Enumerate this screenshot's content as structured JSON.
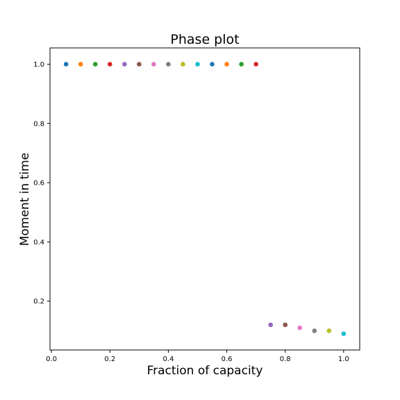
{
  "chart_data": {
    "type": "scatter",
    "title": "Phase plot",
    "xlabel": "Fraction of capacity",
    "ylabel": "Moment in time",
    "xlim": [
      -0.005,
      1.055
    ],
    "ylim": [
      0.035,
      1.055
    ],
    "xticks": [
      0.0,
      0.2,
      0.4,
      0.6,
      0.8,
      1.0
    ],
    "xtick_labels": [
      "0.0",
      "0.2",
      "0.4",
      "0.6",
      "0.8",
      "1.0"
    ],
    "yticks": [
      0.2,
      0.4,
      0.6,
      0.8,
      1.0
    ],
    "ytick_labels": [
      "0.2",
      "0.4",
      "0.6",
      "0.8",
      "1.0"
    ],
    "grid": false,
    "points": [
      {
        "x": 0.05,
        "y": 1.0,
        "color": "#1f77b4"
      },
      {
        "x": 0.1,
        "y": 1.0,
        "color": "#ff7f0e"
      },
      {
        "x": 0.15,
        "y": 1.0,
        "color": "#2ca02c"
      },
      {
        "x": 0.2,
        "y": 1.0,
        "color": "#d62728"
      },
      {
        "x": 0.25,
        "y": 1.0,
        "color": "#9467bd"
      },
      {
        "x": 0.3,
        "y": 1.0,
        "color": "#8c564b"
      },
      {
        "x": 0.35,
        "y": 1.0,
        "color": "#e377c2"
      },
      {
        "x": 0.4,
        "y": 1.0,
        "color": "#7f7f7f"
      },
      {
        "x": 0.45,
        "y": 1.0,
        "color": "#bcbd22"
      },
      {
        "x": 0.5,
        "y": 1.0,
        "color": "#17becf"
      },
      {
        "x": 0.55,
        "y": 1.0,
        "color": "#1f77b4"
      },
      {
        "x": 0.6,
        "y": 1.0,
        "color": "#ff7f0e"
      },
      {
        "x": 0.65,
        "y": 1.0,
        "color": "#2ca02c"
      },
      {
        "x": 0.7,
        "y": 1.0,
        "color": "#d62728"
      },
      {
        "x": 0.75,
        "y": 0.12,
        "color": "#9467bd"
      },
      {
        "x": 0.8,
        "y": 0.12,
        "color": "#8c564b"
      },
      {
        "x": 0.85,
        "y": 0.11,
        "color": "#e377c2"
      },
      {
        "x": 0.9,
        "y": 0.1,
        "color": "#7f7f7f"
      },
      {
        "x": 0.95,
        "y": 0.1,
        "color": "#bcbd22"
      },
      {
        "x": 1.0,
        "y": 0.09,
        "color": "#17becf"
      }
    ]
  }
}
